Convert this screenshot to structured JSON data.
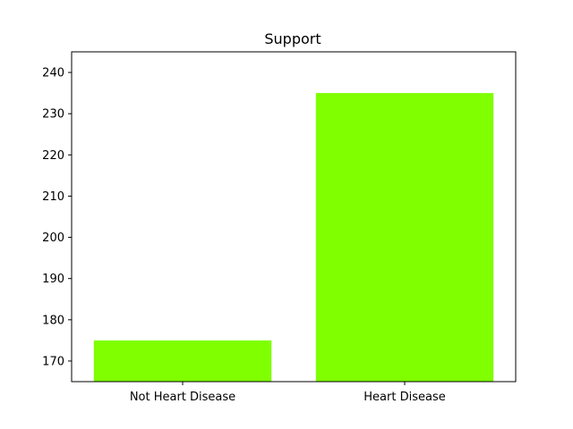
{
  "chart_data": {
    "type": "bar",
    "title": "Support",
    "xlabel": "",
    "ylabel": "",
    "categories": [
      "Not Heart Disease",
      "Heart Disease"
    ],
    "values": [
      175,
      235
    ],
    "ylim": [
      165,
      245
    ],
    "yticks": [
      170,
      180,
      190,
      200,
      210,
      220,
      230,
      240
    ],
    "bar_color": "#7fff00",
    "grid": false,
    "legend": "none"
  }
}
